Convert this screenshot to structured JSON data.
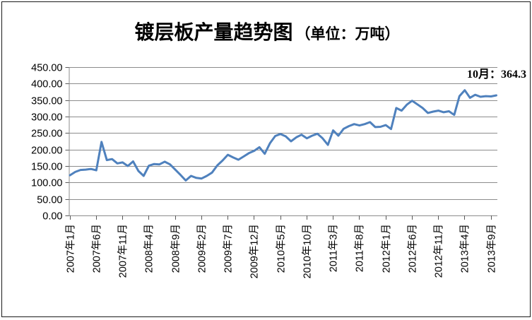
{
  "chart_data": {
    "type": "line",
    "title_main": "镀层板产量趋势图",
    "title_unit": "（单位：万吨）",
    "unit": "万吨",
    "annotation": "10月：364.3",
    "annotation_value": 364.3,
    "grid": true,
    "legend_position": "none",
    "ylim": [
      0,
      450
    ],
    "y_step": 50,
    "y_tick_labels": [
      "450.00",
      "400.00",
      "350.00",
      "300.00",
      "250.00",
      "200.00",
      "150.00",
      "100.00",
      "50.00",
      "0.00"
    ],
    "x_tick_labels": [
      "2007年1月",
      "2007年6月",
      "2007年11月",
      "2008年4月",
      "2008年9月",
      "2009年2月",
      "2009年7月",
      "2009年12月",
      "2010年5月",
      "2010年10月",
      "2011年3月",
      "2011年8月",
      "2012年1月",
      "2012年6月",
      "2012年11月",
      "2013年4月",
      "2013年9月"
    ],
    "x_tick_interval_months": 5,
    "x_categories": [
      "2007-01",
      "2007-02",
      "2007-03",
      "2007-04",
      "2007-05",
      "2007-06",
      "2007-07",
      "2007-08",
      "2007-09",
      "2007-10",
      "2007-11",
      "2007-12",
      "2008-01",
      "2008-02",
      "2008-03",
      "2008-04",
      "2008-05",
      "2008-06",
      "2008-07",
      "2008-08",
      "2008-09",
      "2008-10",
      "2008-11",
      "2008-12",
      "2009-01",
      "2009-02",
      "2009-03",
      "2009-04",
      "2009-05",
      "2009-06",
      "2009-07",
      "2009-08",
      "2009-09",
      "2009-10",
      "2009-11",
      "2009-12",
      "2010-01",
      "2010-02",
      "2010-03",
      "2010-04",
      "2010-05",
      "2010-06",
      "2010-07",
      "2010-08",
      "2010-09",
      "2010-10",
      "2010-11",
      "2010-12",
      "2011-01",
      "2011-02",
      "2011-03",
      "2011-04",
      "2011-05",
      "2011-06",
      "2011-07",
      "2011-08",
      "2011-09",
      "2011-10",
      "2011-11",
      "2011-12",
      "2012-01",
      "2012-02",
      "2012-03",
      "2012-04",
      "2012-05",
      "2012-06",
      "2012-07",
      "2012-08",
      "2012-09",
      "2012-10",
      "2012-11",
      "2012-12",
      "2013-01",
      "2013-02",
      "2013-03",
      "2013-04",
      "2013-05",
      "2013-06",
      "2013-07",
      "2013-08",
      "2013-09",
      "2013-10"
    ],
    "values": [
      122,
      132,
      138,
      139,
      141,
      137,
      223,
      168,
      171,
      158,
      161,
      150,
      164,
      135,
      120,
      151,
      156,
      155,
      163,
      155,
      139,
      123,
      106,
      120,
      114,
      112,
      120,
      130,
      152,
      167,
      184,
      176,
      169,
      179,
      189,
      196,
      207,
      187,
      219,
      241,
      247,
      240,
      225,
      237,
      245,
      234,
      242,
      248,
      234,
      214,
      258,
      242,
      263,
      271,
      277,
      273,
      277,
      283,
      268,
      269,
      274,
      262,
      326,
      318,
      336,
      348,
      337,
      326,
      311,
      315,
      318,
      313,
      316,
      305,
      362,
      380,
      357,
      366,
      360,
      362,
      361,
      364.3
    ],
    "colors": {
      "line": "#4F81BD",
      "grid": "#8C8C8C",
      "axis": "#8C8C8C",
      "tick": "#595959",
      "text": "#000000",
      "background": "#FFFFFF"
    }
  }
}
